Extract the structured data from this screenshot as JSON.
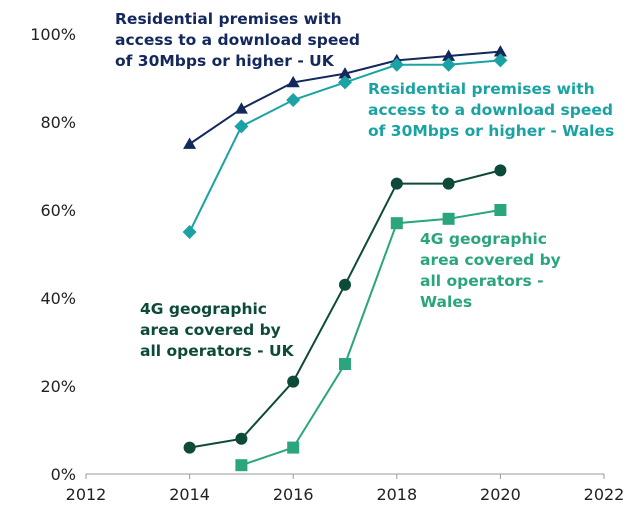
{
  "chart_data": {
    "type": "line",
    "title": "",
    "xlabel": "",
    "ylabel": "",
    "xlim": [
      2012,
      2022
    ],
    "ylim": [
      0,
      100
    ],
    "x_ticks": [
      "2012",
      "2014",
      "2016",
      "2018",
      "2020",
      "2022"
    ],
    "y_ticks": [
      "0%",
      "20%",
      "40%",
      "60%",
      "80%",
      "100%"
    ],
    "grid": false,
    "legend": "none (series labelled directly on chart)",
    "series": [
      {
        "name": "Residential premises with access to a download speed of 30Mbps or higher - UK",
        "label_lines": [
          "Residential premises with",
          "access to a download speed",
          "of 30Mbps or higher - UK"
        ],
        "marker": "triangle",
        "color": "#13285c",
        "x": [
          2014,
          2015,
          2016,
          2017,
          2018,
          2019,
          2020
        ],
        "y": [
          75,
          83,
          89,
          91,
          94,
          95,
          96
        ]
      },
      {
        "name": "Residential premises with access to a download speed of 30Mbps or higher - Wales",
        "label_lines": [
          "Residential premises with",
          "access to a download speed",
          "of 30Mbps or higher - Wales"
        ],
        "marker": "diamond",
        "color": "#1ba3a3",
        "x": [
          2014,
          2015,
          2016,
          2017,
          2018,
          2019,
          2020
        ],
        "y": [
          55,
          79,
          85,
          89,
          93,
          93,
          94
        ]
      },
      {
        "name": "4G geographic area covered by all operators - UK",
        "label_lines": [
          "4G geographic",
          "area covered by",
          "all operators - UK"
        ],
        "marker": "circle",
        "color": "#0d4a3a",
        "x": [
          2014,
          2015,
          2016,
          2017,
          2018,
          2019,
          2020
        ],
        "y": [
          6,
          8,
          21,
          43,
          66,
          66,
          69
        ]
      },
      {
        "name": "4G geographic area covered by all operators - Wales",
        "label_lines": [
          "4G geographic",
          "area covered by",
          "all operators -",
          "Wales"
        ],
        "marker": "square",
        "color": "#2aa57e",
        "x": [
          2015,
          2016,
          2017,
          2018,
          2019,
          2020
        ],
        "y": [
          2,
          6,
          25,
          57,
          58,
          60
        ]
      }
    ]
  }
}
